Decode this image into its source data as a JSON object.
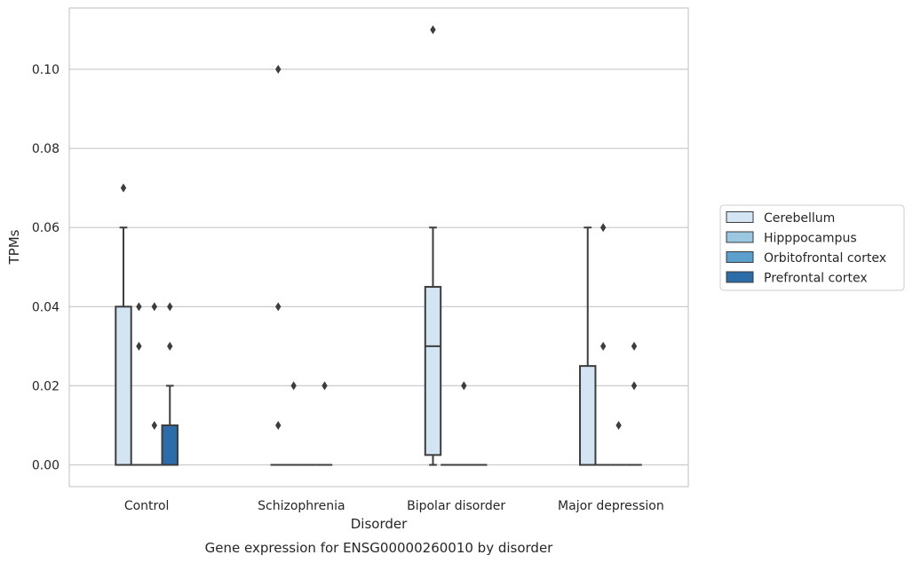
{
  "caption": "Gene expression for ENSG00000260010 by disorder",
  "chart_data": {
    "type": "box",
    "xlabel": "Disorder",
    "ylabel": "TPMs",
    "ylim": [
      -0.0055,
      0.1155
    ],
    "yticks": [
      0.0,
      0.02,
      0.04,
      0.06,
      0.08,
      0.1
    ],
    "ytick_labels": [
      "0.00",
      "0.02",
      "0.04",
      "0.06",
      "0.08",
      "0.10"
    ],
    "categories": [
      "Control",
      "Schizophrenia",
      "Bipolar disorder",
      "Major depression"
    ],
    "grid": "horizontal",
    "legend_position": "right",
    "series": [
      {
        "name": "Cerebellum",
        "color": "#d3e4f3",
        "boxes": [
          {
            "q1": 0.0,
            "median": 0.0,
            "q3": 0.04,
            "whislo": 0.0,
            "whishi": 0.06,
            "fliers": [
              0.07
            ]
          },
          {
            "q1": 0.0,
            "median": 0.0,
            "q3": 0.0,
            "whislo": 0.0,
            "whishi": 0.0,
            "fliers": [
              0.1,
              0.04,
              0.01
            ]
          },
          {
            "q1": 0.0025,
            "median": 0.03,
            "q3": 0.045,
            "whislo": 0.0,
            "whishi": 0.06,
            "fliers": [
              0.11
            ]
          },
          {
            "q1": 0.0,
            "median": 0.0,
            "q3": 0.025,
            "whislo": 0.0,
            "whishi": 0.06,
            "fliers": []
          }
        ]
      },
      {
        "name": "Hipppocampus",
        "color": "#9ac8e0",
        "boxes": [
          {
            "q1": 0.0,
            "median": 0.0,
            "q3": 0.0,
            "whislo": 0.0,
            "whishi": 0.0,
            "fliers": [
              0.04,
              0.03
            ]
          },
          {
            "q1": 0.0,
            "median": 0.0,
            "q3": 0.0,
            "whislo": 0.0,
            "whishi": 0.0,
            "fliers": [
              0.02
            ]
          },
          {
            "q1": 0.0,
            "median": 0.0,
            "q3": 0.0,
            "whislo": 0.0,
            "whishi": 0.0,
            "fliers": []
          },
          {
            "q1": 0.0,
            "median": 0.0,
            "q3": 0.0,
            "whislo": 0.0,
            "whishi": 0.0,
            "fliers": [
              0.06,
              0.03
            ]
          }
        ]
      },
      {
        "name": "Orbitofrontal cortex",
        "color": "#5aa0cd",
        "boxes": [
          {
            "q1": 0.0,
            "median": 0.0,
            "q3": 0.0,
            "whislo": 0.0,
            "whishi": 0.0,
            "fliers": [
              0.04,
              0.01
            ]
          },
          {
            "q1": 0.0,
            "median": 0.0,
            "q3": 0.0,
            "whislo": 0.0,
            "whishi": 0.0,
            "fliers": []
          },
          {
            "q1": 0.0,
            "median": 0.0,
            "q3": 0.0,
            "whislo": 0.0,
            "whishi": 0.0,
            "fliers": [
              0.02
            ]
          },
          {
            "q1": 0.0,
            "median": 0.0,
            "q3": 0.0,
            "whislo": 0.0,
            "whishi": 0.0,
            "fliers": [
              0.01
            ]
          }
        ]
      },
      {
        "name": "Prefrontal cortex",
        "color": "#2b6ca9",
        "boxes": [
          {
            "q1": 0.0,
            "median": 0.0,
            "q3": 0.01,
            "whislo": 0.0,
            "whishi": 0.02,
            "fliers": [
              0.04,
              0.03
            ]
          },
          {
            "q1": 0.0,
            "median": 0.0,
            "q3": 0.0,
            "whislo": 0.0,
            "whishi": 0.0,
            "fliers": [
              0.02
            ]
          },
          {
            "q1": 0.0,
            "median": 0.0,
            "q3": 0.0,
            "whislo": 0.0,
            "whishi": 0.0,
            "fliers": []
          },
          {
            "q1": 0.0,
            "median": 0.0,
            "q3": 0.0,
            "whislo": 0.0,
            "whishi": 0.0,
            "fliers": [
              0.03,
              0.02
            ]
          }
        ]
      }
    ]
  }
}
